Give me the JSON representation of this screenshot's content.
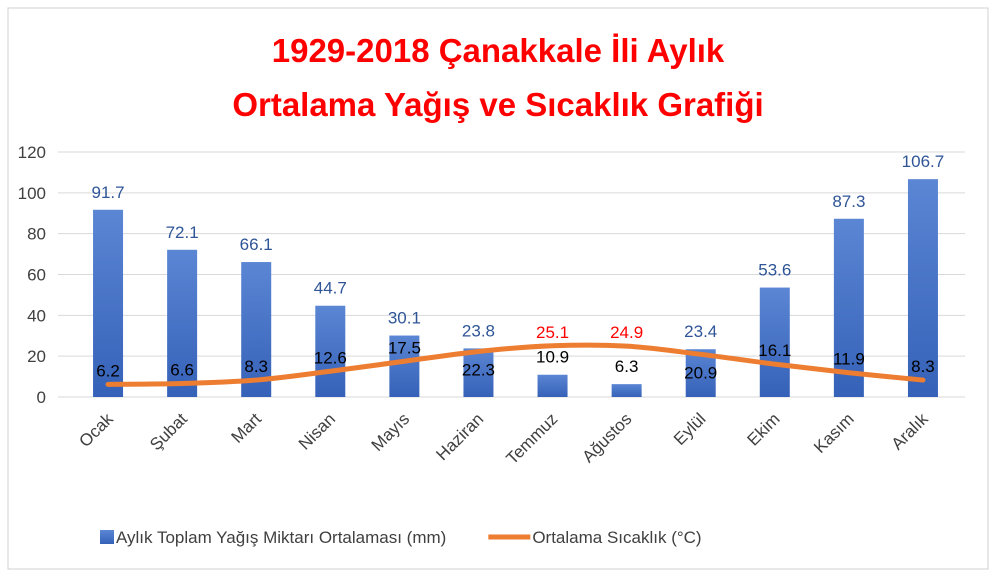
{
  "chart_data": {
    "type": "combo",
    "title": [
      "1929-2018 Çanakkale  İli Aylık",
      "Ortalama  Yağış ve Sıcaklık Grafiği"
    ],
    "categories": [
      "Ocak",
      "Şubat",
      "Mart",
      "Nisan",
      "Mayıs",
      "Haziran",
      "Temmuz",
      "Ağustos",
      "Eylül",
      "Ekim",
      "Kasım",
      "Aralık"
    ],
    "series": [
      {
        "name": "Aylık Toplam Yağış Miktarı Ortalaması (mm)",
        "type": "bar",
        "color": "#4472c4",
        "values": [
          91.7,
          72.1,
          66.1,
          44.7,
          30.1,
          23.8,
          10.9,
          6.3,
          23.4,
          53.6,
          87.3,
          106.7
        ],
        "label_colors": [
          "#2f5597",
          "#2f5597",
          "#2f5597",
          "#2f5597",
          "#2f5597",
          "#2f5597",
          "#000000",
          "#000000",
          "#2f5597",
          "#2f5597",
          "#2f5597",
          "#2f5597"
        ]
      },
      {
        "name": "Ortalama Sıcaklık (°C)",
        "type": "line",
        "color": "#ed7d31",
        "values": [
          6.2,
          6.6,
          8.3,
          12.6,
          17.5,
          22.3,
          25.1,
          24.9,
          20.9,
          16.1,
          11.9,
          8.3
        ],
        "label_colors": [
          "#000000",
          "#000000",
          "#000000",
          "#000000",
          "#000000",
          "#000000",
          "#ff0000",
          "#ff0000",
          "#000000",
          "#000000",
          "#000000",
          "#000000"
        ]
      }
    ],
    "ylim": [
      0,
      120
    ],
    "yticks": [
      0,
      20,
      40,
      60,
      80,
      100,
      120
    ],
    "grid": true,
    "legend": "bottom"
  }
}
